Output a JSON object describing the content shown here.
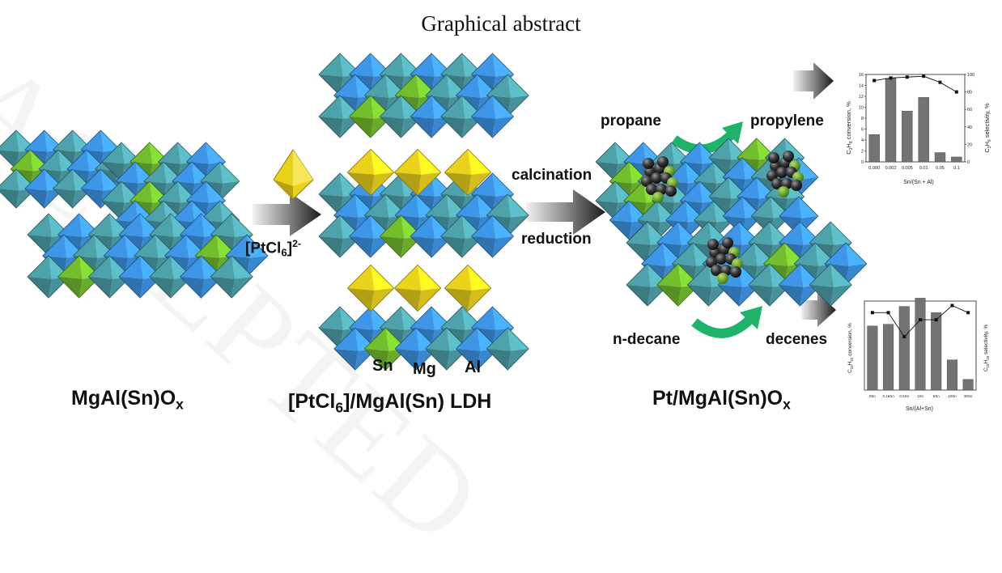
{
  "header": {
    "title": "Graphical abstract",
    "watermark": "ACCEPTED"
  },
  "materials": {
    "support": {
      "text": "MgAl(Sn)O",
      "sub": "x"
    },
    "ldh": {
      "pre": "[PtCl",
      "sub": "6",
      "post": "]/MgAl(Sn) LDH"
    },
    "catalyst": {
      "text": "Pt/MgAl(Sn)O",
      "sub": "x"
    }
  },
  "steps": {
    "precursor": {
      "pre": "[PtCl",
      "sub": "6",
      "mid": "]",
      "sup": "2-"
    },
    "calcination": "calcination",
    "reduction": "reduction"
  },
  "layer_labels": {
    "sn": "Sn",
    "mg": "Mg",
    "al": "Al"
  },
  "reactions": {
    "propane": "propane",
    "propylene": "propylene",
    "decane": "n-decane",
    "decenes": "decenes"
  },
  "colors": {
    "teal": "#4a9aa3",
    "blue": "#3a8fdc",
    "green": "#6db52b",
    "yellow": "#e0c81a",
    "bar": "#737373"
  },
  "chart_data": [
    {
      "type": "bar",
      "categories": [
        "0.000",
        "0.002",
        "0.005",
        "0.01",
        "0.05",
        "0.1"
      ],
      "xlabel": "Sn/(Sn + Al)",
      "ylabel_left": {
        "pre": "C",
        "s1": "3",
        "mid": "H",
        "s2": "8",
        "post": " conversion, %"
      },
      "ylabel_right": {
        "pre": "C",
        "s1": "3",
        "mid": "H",
        "s2": "6",
        "post": " selectivity, %"
      },
      "ylim_left": [
        0,
        16
      ],
      "ylim_right": [
        0,
        100
      ],
      "yticks_left": [
        "0",
        "2",
        "4",
        "6",
        "8",
        "10",
        "12",
        "14",
        "16"
      ],
      "yticks_right": [
        "0",
        "20",
        "40",
        "60",
        "80",
        "100"
      ],
      "series": [
        {
          "values": [
            5.0,
            15.3,
            9.3,
            11.8,
            1.7,
            0.9
          ]
        },
        {
          "values": [
            93,
            96,
            97,
            98,
            91,
            80
          ]
        }
      ]
    },
    {
      "type": "bar",
      "categories": [
        "0Sn",
        "0.16Sn",
        "0.5Sn",
        "1Sn",
        "5Sn",
        "10Sn",
        "30Sn"
      ],
      "xlabel": "Sn/(Al+Sn)",
      "ylabel_left": {
        "pre": "C",
        "s1": "10",
        "mid": "H",
        "s2": "22",
        "post": " conversion, %"
      },
      "ylabel_right": {
        "pre": "C",
        "s1": "10",
        "mid": "H",
        "s2": "20",
        "post": " selectivity, %"
      },
      "ylim_left": [
        0,
        10
      ],
      "ylim_right": [
        0,
        100
      ],
      "series": [
        {
          "values": [
            7.2,
            7.4,
            9.4,
            10.6,
            8.7,
            3.4,
            1.2
          ]
        },
        {
          "values": [
            87,
            87,
            60,
            79,
            79,
            95,
            87
          ]
        }
      ]
    }
  ]
}
